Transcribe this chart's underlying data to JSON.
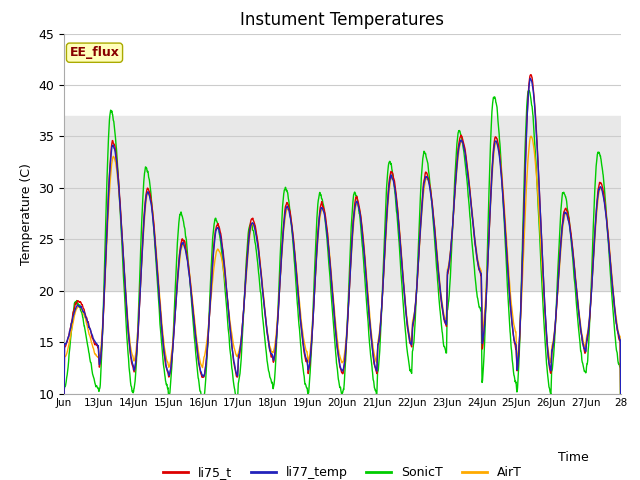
{
  "title": "Instument Temperatures",
  "ylabel": "Temperature (C)",
  "xlabel": "Time",
  "ylim": [
    10,
    45
  ],
  "xlim": [
    0,
    16
  ],
  "x_tick_labels": [
    "Jun",
    "13Jun",
    "14Jun",
    "15Jun",
    "16Jun",
    "17Jun",
    "18Jun",
    "19Jun",
    "20Jun",
    "21Jun",
    "22Jun",
    "23Jun",
    "24Jun",
    "25Jun",
    "26Jun",
    "27Jun",
    "28"
  ],
  "shade_ymin": 20,
  "shade_ymax": 37,
  "shade_color": "#e8e8e8",
  "ee_flux_label": "EE_flux",
  "ee_flux_color": "#880000",
  "ee_flux_bg": "#ffffbb",
  "line_colors": {
    "li75_t": "#dd0000",
    "li77_temp": "#2222bb",
    "SonicT": "#00cc00",
    "AirT": "#ffaa00"
  },
  "legend_labels": [
    "li75_t",
    "li77_temp",
    "SonicT",
    "AirT"
  ],
  "background_color": "#ffffff",
  "grid_color": "#cccccc",
  "title_fontsize": 12,
  "axis_fontsize": 9
}
